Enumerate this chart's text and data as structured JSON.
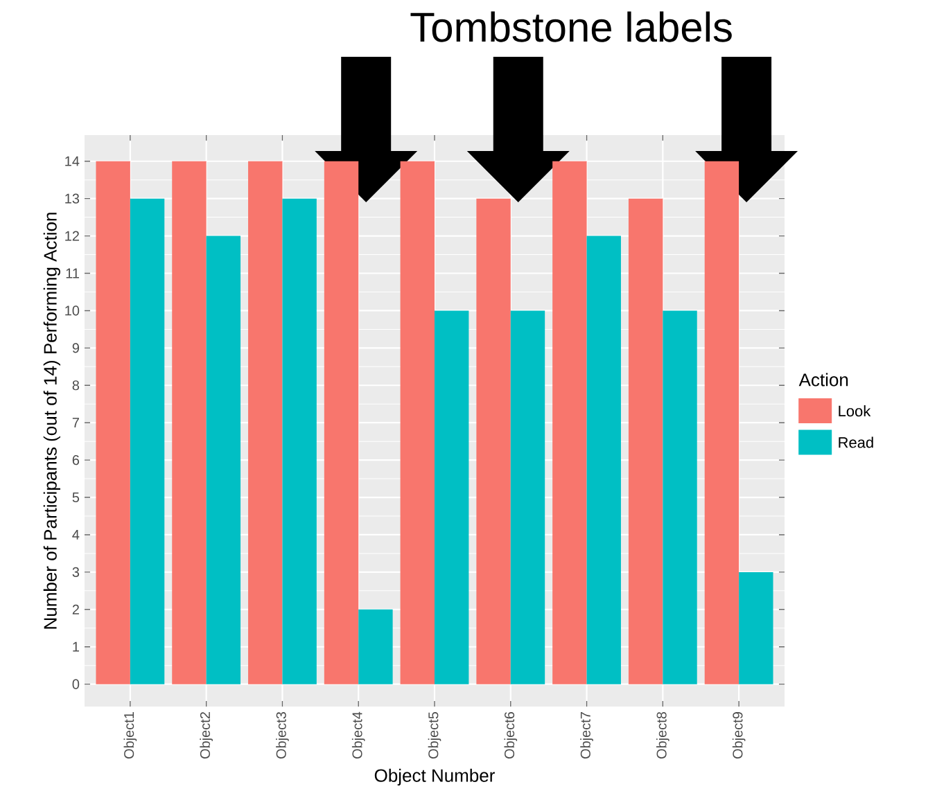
{
  "chart_data": {
    "type": "bar",
    "title": "Tombstone labels",
    "xlabel": "Object Number",
    "ylabel": "Number of Participants (out of 14) Performing Action",
    "categories": [
      "Object1",
      "Object2",
      "Object3",
      "Object4",
      "Object5",
      "Object6",
      "Object7",
      "Object8",
      "Object9"
    ],
    "series": [
      {
        "name": "Look",
        "color": "#f8766d",
        "values": [
          14,
          14,
          14,
          14,
          14,
          13,
          14,
          13,
          14
        ]
      },
      {
        "name": "Read",
        "color": "#00bfc4",
        "values": [
          13,
          12,
          13,
          2,
          10,
          10,
          12,
          10,
          3
        ]
      }
    ],
    "legend_title": "Action",
    "legend": "right",
    "grid": true,
    "ylim": [
      -0.6,
      14.7
    ],
    "yticks": [
      0,
      1,
      2,
      3,
      4,
      5,
      6,
      7,
      8,
      9,
      10,
      11,
      12,
      13,
      14
    ]
  }
}
